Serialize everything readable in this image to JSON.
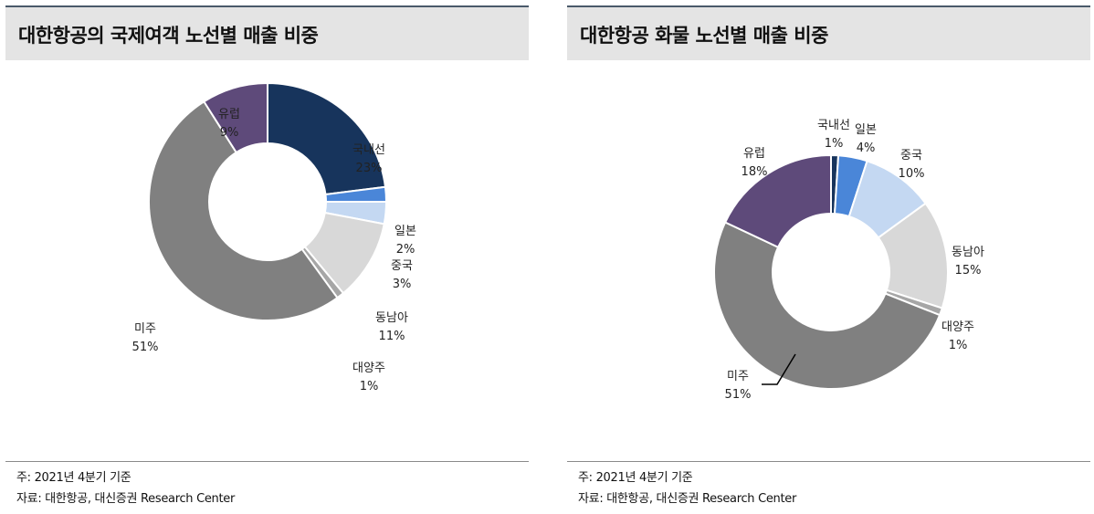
{
  "colors": {
    "국내선": "#17345c",
    "일본": "#4a86d8",
    "중국": "#c4d8f2",
    "동남아": "#d8d8d8",
    "대양주": "#a6a6a6",
    "미주": "#808080",
    "유럽": "#5e4a7a"
  },
  "chart_data": [
    {
      "type": "pie",
      "title": "대한항공의 국제여객 노선별 매출 비중",
      "categories": [
        "국내선",
        "일본",
        "중국",
        "동남아",
        "대양주",
        "미주",
        "유럽"
      ],
      "values": [
        23,
        2,
        3,
        11,
        1,
        51,
        9
      ],
      "labels": [
        "23%",
        "2%",
        "3%",
        "11%",
        "1%",
        "51%",
        "9%"
      ],
      "donut": true,
      "note": "주: 2021년 4분기 기준",
      "source": "자료: 대한항공, 대신증권 Research Center"
    },
    {
      "type": "pie",
      "title": "대한항공 화물 노선별 매출 비중",
      "categories": [
        "국내선",
        "일본",
        "중국",
        "동남아",
        "대양주",
        "미주",
        "유럽"
      ],
      "values": [
        1,
        4,
        10,
        15,
        1,
        51,
        18
      ],
      "labels": [
        "1%",
        "4%",
        "10%",
        "15%",
        "1%",
        "51%",
        "18%"
      ],
      "donut": true,
      "note": "주: 2021년 4분기 기준",
      "source": "자료: 대한항공, 대신증권 Research Center"
    }
  ]
}
